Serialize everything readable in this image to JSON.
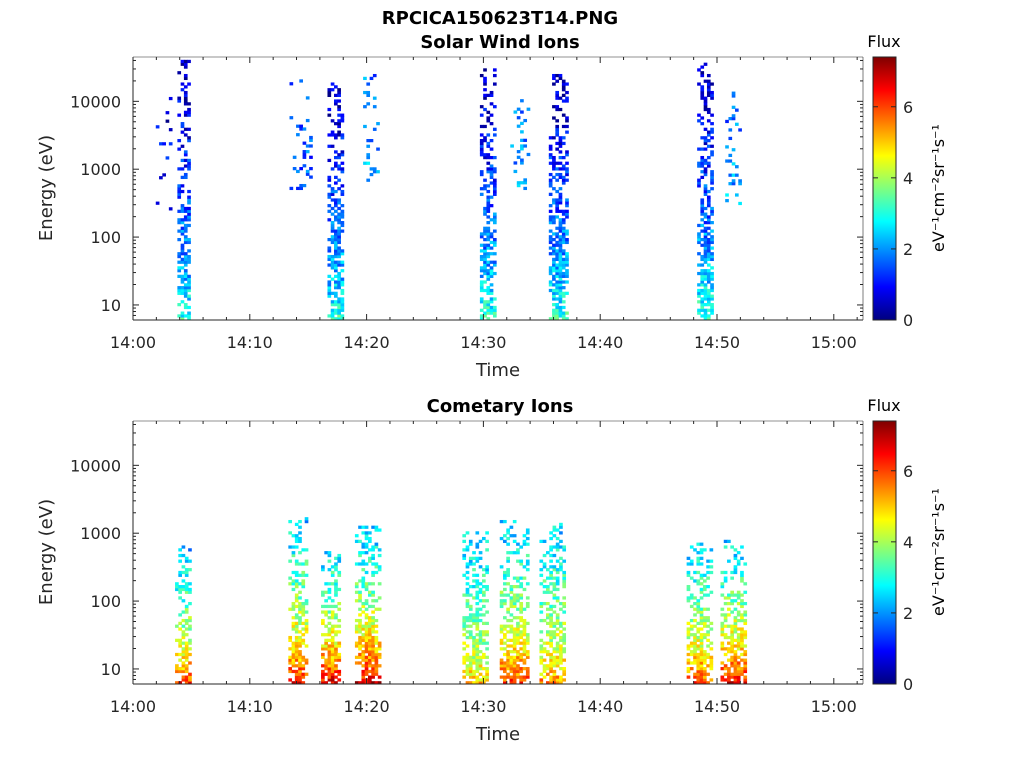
{
  "figure": {
    "title": "RPCICA150623T14.PNG"
  },
  "colorbar": {
    "label": "Flux",
    "unit_label": "eV⁻¹cm⁻²sr⁻¹s⁻¹",
    "ticks": [
      "0",
      "2",
      "4",
      "6"
    ],
    "range": [
      0,
      7.4
    ],
    "colormap": "jet",
    "colors": [
      "#00007f",
      "#0000ff",
      "#007fff",
      "#00ffff",
      "#7fff7f",
      "#ffff00",
      "#ff7f00",
      "#ff0000",
      "#7f0000"
    ]
  },
  "chart_data": [
    {
      "type": "heatmap",
      "title": "Solar Wind Ions",
      "xlabel": "Time",
      "ylabel": "Energy (eV)",
      "x_ticks": [
        "14:00",
        "14:10",
        "14:20",
        "14:30",
        "14:40",
        "14:50",
        "15:00"
      ],
      "y_ticks": [
        "10",
        "100",
        "1000",
        "10000"
      ],
      "y_scale": "log",
      "ylim": [
        6,
        45000
      ],
      "xlim_minutes_after_14_00": [
        0,
        62.5
      ],
      "flux_range": [
        0,
        7.4
      ],
      "bursts": [
        {
          "t": 4.3,
          "w": 1.0,
          "emin": 6,
          "emax": 40000,
          "flux_low": 3.2,
          "flux_high": 0.4,
          "density": 0.72
        },
        {
          "t": 2.6,
          "w": 1.3,
          "emin": 250,
          "emax": 20000,
          "flux_low": 1.0,
          "flux_high": 0.6,
          "density": 0.08
        },
        {
          "t": 17.3,
          "w": 1.3,
          "emin": 6,
          "emax": 20000,
          "flux_low": 3.3,
          "flux_high": 0.4,
          "density": 0.75
        },
        {
          "t": 14.3,
          "w": 1.8,
          "emin": 500,
          "emax": 20000,
          "flux_low": 1.8,
          "flux_high": 1.4,
          "density": 0.18
        },
        {
          "t": 20.3,
          "w": 1.2,
          "emin": 600,
          "emax": 25000,
          "flux_low": 2.2,
          "flux_high": 1.8,
          "density": 0.22
        },
        {
          "t": 30.3,
          "w": 1.2,
          "emin": 6,
          "emax": 30000,
          "flux_low": 3.3,
          "flux_high": 0.4,
          "density": 0.72
        },
        {
          "t": 33.1,
          "w": 1.6,
          "emin": 500,
          "emax": 15000,
          "flux_low": 2.2,
          "flux_high": 1.6,
          "density": 0.25
        },
        {
          "t": 36.4,
          "w": 1.6,
          "emin": 6,
          "emax": 25000,
          "flux_low": 3.3,
          "flux_high": 0.4,
          "density": 0.78
        },
        {
          "t": 49.0,
          "w": 1.4,
          "emin": 6,
          "emax": 35000,
          "flux_low": 3.4,
          "flux_high": 0.4,
          "density": 0.72
        },
        {
          "t": 51.3,
          "w": 1.2,
          "emin": 300,
          "emax": 15000,
          "flux_low": 2.3,
          "flux_high": 1.7,
          "density": 0.22
        }
      ]
    },
    {
      "type": "heatmap",
      "title": "Cometary Ions",
      "xlabel": "Time",
      "ylabel": "Energy (eV)",
      "x_ticks": [
        "14:00",
        "14:10",
        "14:20",
        "14:30",
        "14:40",
        "14:50",
        "15:00"
      ],
      "y_ticks": [
        "10",
        "100",
        "1000",
        "10000"
      ],
      "y_scale": "log",
      "ylim": [
        6,
        45000
      ],
      "xlim_minutes_after_14_00": [
        0,
        62.5
      ],
      "flux_range": [
        0,
        7.4
      ],
      "bursts": [
        {
          "t": 4.3,
          "w": 1.4,
          "emin": 6,
          "emax": 600,
          "flux_low": 6.3,
          "flux_high": 2.2,
          "density": 0.72
        },
        {
          "t": 14.0,
          "w": 1.4,
          "emin": 6,
          "emax": 1600,
          "flux_low": 6.6,
          "flux_high": 2.3,
          "density": 0.75
        },
        {
          "t": 16.9,
          "w": 1.6,
          "emin": 6,
          "emax": 500,
          "flux_low": 6.9,
          "flux_high": 2.5,
          "density": 0.8
        },
        {
          "t": 20.0,
          "w": 2.0,
          "emin": 6,
          "emax": 1200,
          "flux_low": 7.0,
          "flux_high": 2.3,
          "density": 0.82
        },
        {
          "t": 29.3,
          "w": 2.2,
          "emin": 6,
          "emax": 1000,
          "flux_low": 5.2,
          "flux_high": 2.4,
          "density": 0.72
        },
        {
          "t": 32.6,
          "w": 2.4,
          "emin": 6,
          "emax": 1500,
          "flux_low": 6.3,
          "flux_high": 2.3,
          "density": 0.78
        },
        {
          "t": 35.9,
          "w": 2.2,
          "emin": 6,
          "emax": 1400,
          "flux_low": 5.6,
          "flux_high": 2.4,
          "density": 0.74
        },
        {
          "t": 48.5,
          "w": 2.2,
          "emin": 6,
          "emax": 700,
          "flux_low": 6.2,
          "flux_high": 2.4,
          "density": 0.75
        },
        {
          "t": 51.4,
          "w": 2.2,
          "emin": 6,
          "emax": 800,
          "flux_low": 6.7,
          "flux_high": 2.4,
          "density": 0.78
        }
      ]
    }
  ]
}
